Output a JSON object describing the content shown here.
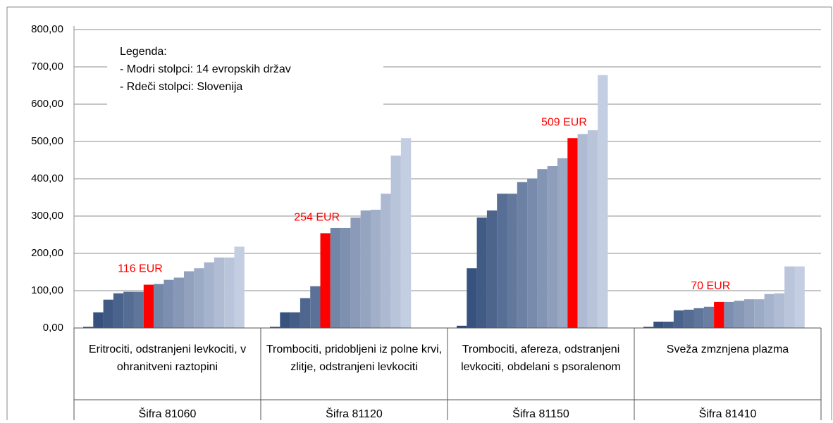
{
  "chart_data": {
    "type": "bar",
    "ylim": [
      0,
      800
    ],
    "yticks": [
      {
        "value": 0,
        "label": "0,00"
      },
      {
        "value": 100,
        "label": "100,00"
      },
      {
        "value": 200,
        "label": "200,00"
      },
      {
        "value": 300,
        "label": "300,00"
      },
      {
        "value": 400,
        "label": "400,00"
      },
      {
        "value": 500,
        "label": "500,00"
      },
      {
        "value": 600,
        "label": "600,00"
      },
      {
        "value": 700,
        "label": "700,00"
      },
      {
        "value": 800,
        "label": "800,00"
      }
    ],
    "grid": true,
    "highlight_color": "#ff0000",
    "legend": {
      "title": "Legenda:",
      "items": [
        "- Modri stolpci: 14 evropskih držav",
        "- Rdeči stolpci: Slovenija"
      ]
    },
    "groups": [
      {
        "name": "Eritrociti, odstranjeni levkociti, v ohranitveni raztopini",
        "code": "Šifra 81060",
        "values": [
          3,
          42,
          76,
          93,
          97,
          97,
          116,
          118,
          129,
          135,
          152,
          160,
          176,
          189,
          189,
          218
        ],
        "value_labels": [
          null,
          null,
          null,
          null,
          null,
          null,
          "116 EUR",
          null,
          null,
          null,
          null,
          null,
          null,
          null,
          null,
          null
        ]
      },
      {
        "name": "Trombociti, pridobljeni iz polne krvi, zlitje, odstranjeni levkociti",
        "code": "Šifra 81120",
        "values": [
          3,
          42,
          42,
          80,
          112,
          254,
          268,
          268,
          296,
          315,
          317,
          360,
          462,
          509
        ],
        "value_labels": [
          null,
          null,
          null,
          null,
          null,
          "254 EUR",
          null,
          null,
          null,
          null,
          null,
          null,
          null,
          null
        ]
      },
      {
        "name": "Trombociti, afereza, odstranjeni levkociti, obdelani s psoralenom",
        "code": "Šifra 81150",
        "values": [
          6,
          160,
          296,
          315,
          360,
          360,
          391,
          401,
          426,
          434,
          455,
          509,
          520,
          530,
          678
        ],
        "value_labels": [
          null,
          null,
          null,
          null,
          null,
          null,
          null,
          null,
          null,
          null,
          null,
          "509 EUR",
          null,
          null,
          null
        ]
      },
      {
        "name": "Sveža zmznjena plazma",
        "code": "Šifra 81410",
        "values": [
          3,
          17,
          17,
          47,
          49,
          53,
          57,
          70,
          70,
          73,
          77,
          77,
          91,
          93,
          165,
          165
        ],
        "value_labels": [
          null,
          null,
          null,
          null,
          null,
          null,
          null,
          "70 EUR",
          null,
          null,
          null,
          null,
          null,
          null,
          null,
          null
        ]
      }
    ]
  }
}
